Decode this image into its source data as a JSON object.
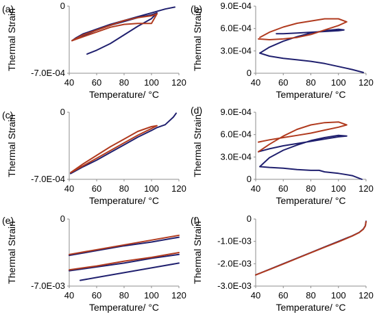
{
  "colors": {
    "blue": "#1f1f6e",
    "red": "#b03a1e",
    "axis": "#8c8c8c"
  },
  "chart_data": [
    {
      "type": "line",
      "panel_label": "(a)",
      "xlabel": "Temperature/  °C",
      "ylabel": "Thermal Strain",
      "xlim": [
        40,
        120
      ],
      "ylim": [
        -0.0007,
        0
      ],
      "x_ticks": [
        40,
        60,
        80,
        100,
        120
      ],
      "x_tick_labels": [
        "40",
        "60",
        "80",
        "100",
        "120"
      ],
      "y_ticks": [
        0,
        -0.0007
      ],
      "y_tick_labels": [
        "0",
        "-7.0E-04"
      ],
      "series": [
        {
          "color": "blue",
          "x": [
            117,
            110,
            100,
            90,
            80,
            70,
            60,
            50,
            45,
            42,
            50,
            60,
            70,
            80,
            90,
            100,
            104,
            100,
            90,
            80,
            70,
            60,
            53
          ],
          "y": [
            -1e-05,
            -3e-05,
            -7e-05,
            -0.00011,
            -0.00015,
            -0.00019,
            -0.00024,
            -0.00029,
            -0.00033,
            -0.00036,
            -0.00031,
            -0.00025,
            -0.0002,
            -0.00016,
            -0.00012,
            -9e-05,
            -7e-05,
            -0.00013,
            -0.00021,
            -0.0003,
            -0.00039,
            -0.00046,
            -0.0005
          ]
        },
        {
          "color": "red",
          "x": [
            42,
            50,
            60,
            70,
            80,
            90,
            100,
            104,
            100,
            90,
            80,
            70,
            60,
            50,
            42
          ],
          "y": [
            -0.00036,
            -0.0003,
            -0.00025,
            -0.0002,
            -0.00015,
            -0.00012,
            -0.0001,
            -8e-05,
            -0.00018,
            -0.00018,
            -0.00019,
            -0.00022,
            -0.00027,
            -0.00032,
            -0.00036
          ]
        }
      ]
    },
    {
      "type": "line",
      "panel_label": "(b)",
      "xlabel": "Temperature/  °C",
      "ylabel": "Thermal Strain",
      "xlim": [
        40,
        120
      ],
      "ylim": [
        0,
        0.0009
      ],
      "x_ticks": [
        40,
        60,
        80,
        100,
        120
      ],
      "x_tick_labels": [
        "40",
        "60",
        "80",
        "100",
        "120"
      ],
      "y_ticks": [
        0,
        0.0003,
        0.0006,
        0.0009
      ],
      "y_tick_labels": [
        "0",
        "3.0E-04",
        "6.0E-04",
        "9.0E-04"
      ],
      "series": [
        {
          "color": "blue",
          "x": [
            118,
            110,
            100,
            90,
            80,
            70,
            60,
            50,
            43,
            50,
            60,
            70,
            80,
            90,
            100,
            104,
            100,
            90,
            80,
            70,
            60,
            55
          ],
          "y": [
            1e-05,
            5e-05,
            9e-05,
            0.00013,
            0.00016,
            0.00018,
            0.0002,
            0.00023,
            0.00027,
            0.00035,
            0.00043,
            0.00049,
            0.00054,
            0.00057,
            0.00059,
            0.00058,
            0.00057,
            0.00056,
            0.00055,
            0.00054,
            0.00053,
            0.00053
          ]
        },
        {
          "color": "red",
          "x": [
            43,
            50,
            60,
            70,
            80,
            90,
            100,
            106,
            100,
            90,
            80,
            70,
            60,
            50,
            42
          ],
          "y": [
            0.00048,
            0.00055,
            0.00062,
            0.00067,
            0.0007,
            0.00073,
            0.00073,
            0.00069,
            0.00064,
            0.00058,
            0.00052,
            0.00048,
            0.00046,
            0.00045,
            0.00046
          ]
        }
      ]
    },
    {
      "type": "line",
      "panel_label": "(c)",
      "xlabel": "Temperature/  °C",
      "ylabel": "Thermal Strain",
      "xlim": [
        40,
        120
      ],
      "ylim": [
        -0.0007,
        0
      ],
      "x_ticks": [
        40,
        60,
        80,
        100,
        120
      ],
      "x_tick_labels": [
        "40",
        "60",
        "80",
        "100",
        "120"
      ],
      "y_ticks": [
        0,
        -0.0007
      ],
      "y_tick_labels": [
        "0",
        "-7.0E-04"
      ],
      "series": [
        {
          "color": "blue",
          "x": [
            118,
            116,
            110,
            104,
            100,
            90,
            80,
            70,
            60,
            50,
            41
          ],
          "y": [
            -1e-05,
            -5e-05,
            -0.00013,
            -0.00016,
            -0.00019,
            -0.00026,
            -0.00034,
            -0.00042,
            -0.0005,
            -0.00057,
            -0.00064
          ]
        },
        {
          "color": "red",
          "x": [
            41,
            50,
            60,
            70,
            80,
            90,
            100,
            104,
            100,
            90,
            80,
            70,
            60,
            50,
            41
          ],
          "y": [
            -0.00063,
            -0.00054,
            -0.00045,
            -0.00036,
            -0.00028,
            -0.0002,
            -0.00015,
            -0.00014,
            -0.00017,
            -0.00024,
            -0.00032,
            -0.0004,
            -0.00048,
            -0.00056,
            -0.00063
          ]
        }
      ]
    },
    {
      "type": "line",
      "panel_label": "(d)",
      "xlabel": "Temperature/  °C",
      "ylabel": "Thermal Strain",
      "xlim": [
        40,
        120
      ],
      "ylim": [
        0,
        0.0009
      ],
      "x_ticks": [
        40,
        60,
        80,
        100,
        120
      ],
      "x_tick_labels": [
        "40",
        "60",
        "80",
        "100",
        "120"
      ],
      "y_ticks": [
        0,
        0.0003,
        0.0006,
        0.0009
      ],
      "y_tick_labels": [
        "0",
        "3.0E-04",
        "6.0E-04",
        "9.0E-04"
      ],
      "series": [
        {
          "color": "blue",
          "x": [
            117,
            110,
            100,
            90,
            86,
            80,
            70,
            60,
            50,
            43,
            50,
            60,
            70,
            80,
            90,
            100,
            106,
            100,
            90,
            80,
            70,
            60,
            50,
            42
          ],
          "y": [
            0.0,
            5e-05,
            8e-05,
            0.0001,
            0.00012,
            0.00012,
            0.00013,
            0.00015,
            0.00016,
            0.00017,
            0.00029,
            0.00039,
            0.00046,
            0.00052,
            0.00056,
            0.00059,
            0.00058,
            0.00057,
            0.00054,
            0.00051,
            0.00048,
            0.00045,
            0.00041,
            0.00037
          ]
        },
        {
          "color": "red",
          "x": [
            42,
            50,
            60,
            70,
            80,
            90,
            100,
            106,
            100,
            90,
            80,
            70,
            60,
            50,
            42
          ],
          "y": [
            0.00037,
            0.00047,
            0.00058,
            0.00067,
            0.00073,
            0.00076,
            0.00077,
            0.00073,
            0.0007,
            0.00066,
            0.00062,
            0.00059,
            0.00056,
            0.00053,
            0.0005
          ]
        }
      ]
    },
    {
      "type": "line",
      "panel_label": "(e)",
      "xlabel": "Temperature/  °C",
      "ylabel": "Thermal Strain",
      "xlim": [
        40,
        120
      ],
      "ylim": [
        -0.007,
        0
      ],
      "x_ticks": [
        40,
        60,
        80,
        100,
        120
      ],
      "x_tick_labels": [
        "40",
        "60",
        "80",
        "100",
        "120"
      ],
      "y_ticks": [
        0,
        -0.007
      ],
      "y_tick_labels": [
        "0",
        "-7.0E-03"
      ],
      "series": [
        {
          "color": "blue",
          "x": [
            40,
            60,
            80,
            100,
            120
          ],
          "y": [
            -0.0038,
            -0.0033,
            -0.0028,
            -0.0024,
            -0.0019
          ]
        },
        {
          "color": "red",
          "x": [
            40,
            60,
            80,
            100,
            120
          ],
          "y": [
            -0.0037,
            -0.0032,
            -0.0027,
            -0.0022,
            -0.0017
          ]
        },
        {
          "color": "blue",
          "x": [
            40,
            60,
            80,
            100,
            120
          ],
          "y": [
            -0.0054,
            -0.005,
            -0.0046,
            -0.0041,
            -0.0037
          ]
        },
        {
          "color": "red",
          "x": [
            40,
            60,
            80,
            100,
            120
          ],
          "y": [
            -0.0053,
            -0.0049,
            -0.0044,
            -0.004,
            -0.0035
          ]
        },
        {
          "color": "blue",
          "x": [
            48,
            60,
            80,
            100,
            120
          ],
          "y": [
            -0.0064,
            -0.0061,
            -0.0056,
            -0.0051,
            -0.0046
          ]
        }
      ]
    },
    {
      "type": "line",
      "panel_label": "(f)",
      "xlabel": "Temperature/  °C",
      "ylabel": "Thermal Strain",
      "xlim": [
        40,
        120
      ],
      "ylim": [
        -0.003,
        0
      ],
      "x_ticks": [
        40,
        60,
        80,
        100,
        120
      ],
      "x_tick_labels": [
        "40",
        "60",
        "80",
        "100",
        "120"
      ],
      "y_ticks": [
        0,
        -0.001,
        -0.002,
        -0.003
      ],
      "y_tick_labels": [
        "0",
        "-1.0E-03",
        "-2.0E-03",
        "-3.0E-03"
      ],
      "series": [
        {
          "color": "blue",
          "x": [
            40,
            50,
            60,
            70,
            80,
            90,
            100,
            110,
            115,
            118,
            119.5,
            120
          ],
          "y": [
            -0.0025,
            -0.00225,
            -0.002,
            -0.00175,
            -0.0015,
            -0.00125,
            -0.001,
            -0.00075,
            -0.0006,
            -0.00045,
            -0.0003,
            -0.0001
          ]
        },
        {
          "color": "red",
          "x": [
            40,
            50,
            60,
            70,
            80,
            90,
            100,
            110,
            115,
            118,
            119.5,
            120
          ],
          "y": [
            -0.0025,
            -0.00226,
            -0.00201,
            -0.00176,
            -0.00151,
            -0.00126,
            -0.00102,
            -0.00076,
            -0.00061,
            -0.00046,
            -0.00031,
            -0.00012
          ]
        }
      ]
    }
  ]
}
